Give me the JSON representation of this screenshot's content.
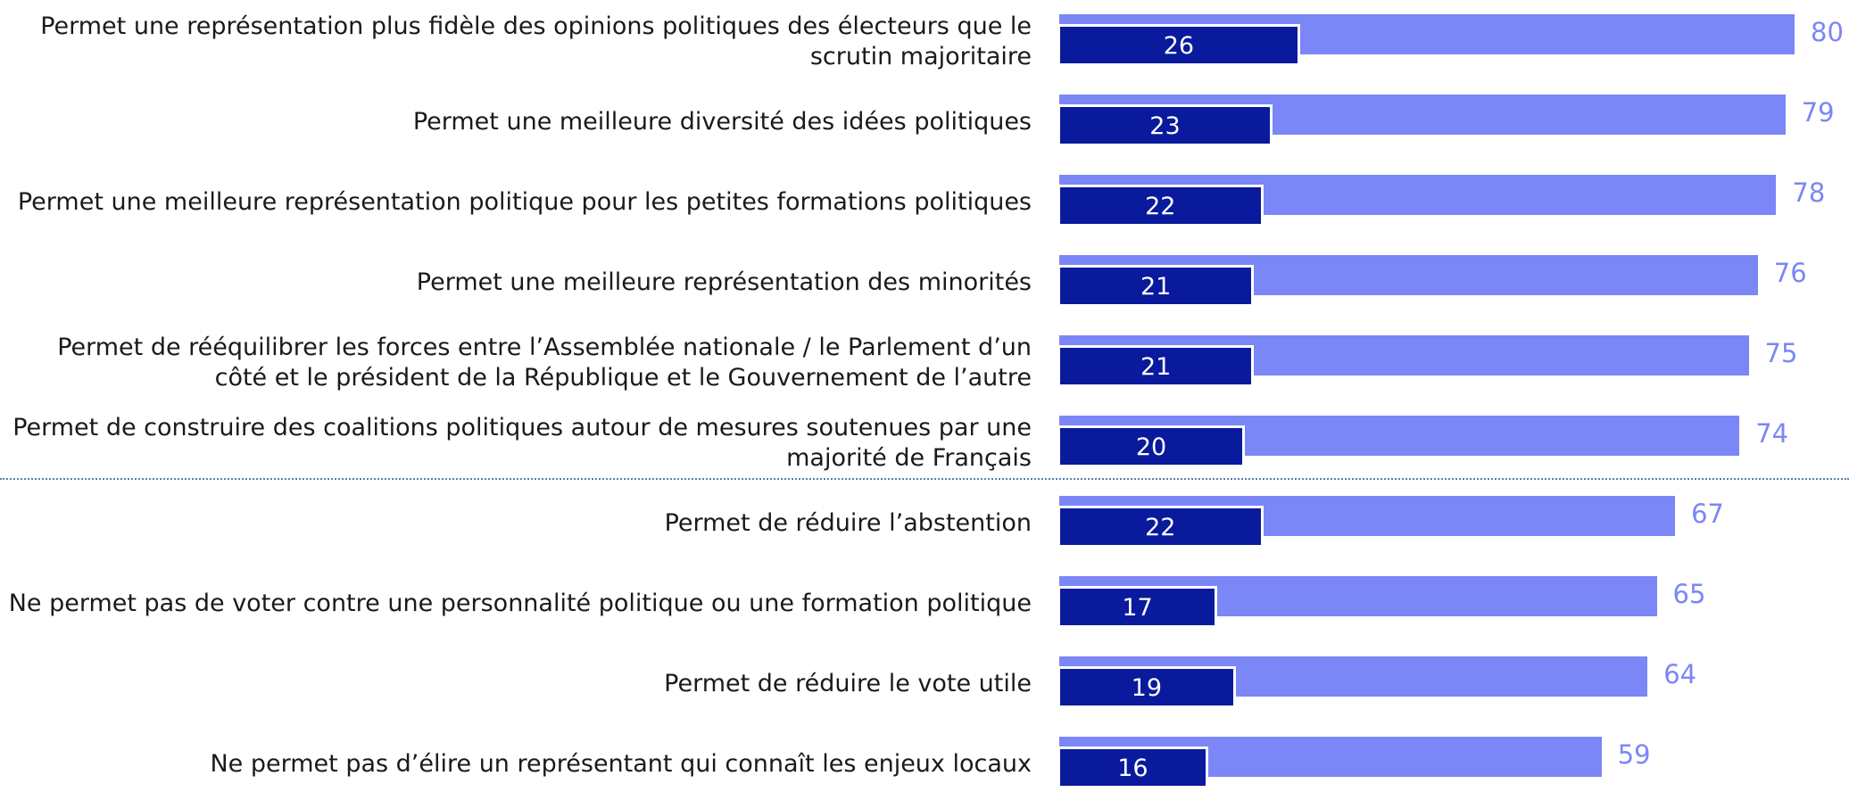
{
  "chart_data": {
    "type": "bar",
    "orientation": "horizontal",
    "categories": [
      "Permet une représentation plus fidèle des opinions politiques des électeurs que le scrutin majoritaire",
      "Permet une meilleure diversité des idées politiques",
      "Permet une meilleure représentation politique pour les petites formations politiques",
      "Permet une meilleure représentation des minorités",
      "Permet de rééquilibrer les forces entre l’Assemblée nationale / le Parlement d’un côté et le président de la République et le Gouvernement de l’autre",
      "Permet de construire des coalitions politiques autour de mesures soutenues par une majorité de Français",
      "Permet de réduire l’abstention",
      "Ne permet pas de voter contre une personnalité politique ou une formation politique",
      "Permet de réduire le vote utile",
      "Ne permet pas d’élire un représentant qui connaît les enjeux locaux"
    ],
    "series": [
      {
        "color": "#7b86f7",
        "values": [
          80,
          79,
          78,
          76,
          75,
          74,
          67,
          65,
          64,
          59
        ]
      },
      {
        "color": "#0a1a9c",
        "values": [
          26,
          23,
          22,
          21,
          21,
          20,
          22,
          17,
          19,
          16
        ]
      }
    ]
  }
}
